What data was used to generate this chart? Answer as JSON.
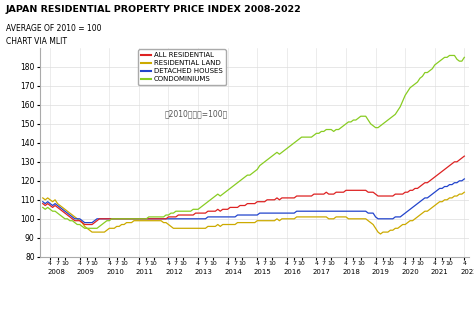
{
  "title": "JAPAN RESIDENTIAL PROPERTY PRICE INDEX 2008-2022",
  "subtitle1": "AVERAGE OF 2010 = 100",
  "subtitle2": "CHART VIA MLIT",
  "annotation": "（2010年平均=100）",
  "ylim": [
    80,
    190
  ],
  "yticks": [
    80,
    90,
    100,
    110,
    120,
    130,
    140,
    150,
    160,
    170,
    180
  ],
  "years": [
    2008,
    2009,
    2010,
    2011,
    2012,
    2013,
    2014,
    2015,
    2016,
    2017,
    2018,
    2019,
    2020,
    2021,
    2022
  ],
  "colors": {
    "all_residential": "#dd2222",
    "residential_land": "#ccaa00",
    "detached_houses": "#2244cc",
    "condominiums": "#88cc22"
  },
  "legend_labels": [
    "ALL RESIDENTIAL",
    "RESIDENTIAL LAND",
    "DETACHED HOUSES",
    "CONDOMINIUMS"
  ],
  "all_residential": [
    108,
    107,
    108,
    107,
    106,
    107,
    106,
    105,
    104,
    103,
    102,
    101,
    100,
    99,
    99,
    99,
    98,
    97,
    97,
    97,
    97,
    98,
    99,
    100,
    100,
    100,
    100,
    100,
    100,
    100,
    100,
    100,
    100,
    100,
    100,
    100,
    100,
    100,
    100,
    100,
    100,
    100,
    100,
    100,
    100,
    100,
    100,
    100,
    100,
    100,
    100,
    101,
    101,
    101,
    101,
    102,
    102,
    102,
    102,
    102,
    102,
    102,
    103,
    103,
    103,
    103,
    103,
    104,
    104,
    104,
    104,
    105,
    104,
    105,
    105,
    105,
    106,
    106,
    106,
    106,
    107,
    107,
    107,
    108,
    108,
    108,
    108,
    109,
    109,
    109,
    109,
    110,
    110,
    110,
    110,
    111,
    110,
    111,
    111,
    111,
    111,
    111,
    111,
    112,
    112,
    112,
    112,
    112,
    112,
    112,
    113,
    113,
    113,
    113,
    113,
    114,
    113,
    113,
    113,
    114,
    114,
    114,
    114,
    115,
    115,
    115,
    115,
    115,
    115,
    115,
    115,
    115,
    114,
    114,
    114,
    113,
    112,
    112,
    112,
    112,
    112,
    112,
    112,
    113,
    113,
    113,
    113,
    114,
    114,
    115,
    115,
    116,
    116,
    117,
    118,
    119,
    119,
    120,
    121,
    122,
    123,
    124,
    125,
    126,
    127,
    128,
    129,
    130,
    130,
    131,
    132,
    133
  ],
  "residential_land": [
    111,
    110,
    111,
    110,
    109,
    110,
    108,
    107,
    106,
    105,
    104,
    103,
    102,
    101,
    100,
    99,
    98,
    96,
    95,
    94,
    93,
    93,
    93,
    93,
    93,
    93,
    94,
    95,
    95,
    95,
    96,
    96,
    97,
    97,
    98,
    98,
    98,
    99,
    99,
    99,
    99,
    99,
    99,
    99,
    99,
    99,
    99,
    99,
    99,
    98,
    98,
    97,
    96,
    95,
    95,
    95,
    95,
    95,
    95,
    95,
    95,
    95,
    95,
    95,
    95,
    95,
    95,
    96,
    96,
    96,
    96,
    97,
    96,
    97,
    97,
    97,
    97,
    97,
    97,
    98,
    98,
    98,
    98,
    98,
    98,
    98,
    98,
    99,
    99,
    99,
    99,
    99,
    99,
    99,
    99,
    100,
    99,
    100,
    100,
    100,
    100,
    100,
    100,
    101,
    101,
    101,
    101,
    101,
    101,
    101,
    101,
    101,
    101,
    101,
    101,
    101,
    100,
    100,
    100,
    101,
    101,
    101,
    101,
    101,
    100,
    100,
    100,
    100,
    100,
    100,
    100,
    100,
    99,
    98,
    97,
    95,
    93,
    92,
    93,
    93,
    93,
    94,
    94,
    95,
    95,
    96,
    97,
    97,
    98,
    99,
    99,
    100,
    101,
    102,
    103,
    104,
    104,
    105,
    106,
    107,
    108,
    109,
    109,
    110,
    110,
    111,
    111,
    112,
    112,
    113,
    113,
    114
  ],
  "detached_houses": [
    109,
    108,
    109,
    108,
    107,
    108,
    107,
    106,
    105,
    104,
    103,
    102,
    101,
    100,
    100,
    100,
    99,
    98,
    98,
    98,
    98,
    99,
    100,
    100,
    100,
    100,
    100,
    100,
    100,
    100,
    100,
    100,
    100,
    100,
    100,
    100,
    100,
    100,
    100,
    100,
    100,
    100,
    100,
    100,
    100,
    100,
    100,
    100,
    100,
    100,
    100,
    100,
    100,
    100,
    100,
    100,
    100,
    100,
    100,
    100,
    100,
    100,
    100,
    100,
    100,
    100,
    100,
    101,
    101,
    101,
    101,
    101,
    101,
    101,
    101,
    101,
    101,
    101,
    101,
    102,
    102,
    102,
    102,
    102,
    102,
    102,
    102,
    102,
    103,
    103,
    103,
    103,
    103,
    103,
    103,
    103,
    103,
    103,
    103,
    103,
    103,
    103,
    103,
    104,
    104,
    104,
    104,
    104,
    104,
    104,
    104,
    104,
    104,
    104,
    104,
    104,
    104,
    104,
    104,
    104,
    104,
    104,
    104,
    104,
    104,
    104,
    104,
    104,
    104,
    104,
    104,
    104,
    103,
    103,
    103,
    101,
    100,
    100,
    100,
    100,
    100,
    100,
    100,
    101,
    101,
    101,
    102,
    103,
    104,
    105,
    106,
    107,
    108,
    109,
    110,
    111,
    111,
    112,
    113,
    114,
    115,
    116,
    116,
    117,
    117,
    118,
    118,
    119,
    119,
    120,
    120,
    121
  ],
  "condominiums": [
    106,
    105,
    106,
    105,
    104,
    104,
    103,
    102,
    101,
    100,
    100,
    99,
    99,
    98,
    97,
    97,
    96,
    95,
    95,
    95,
    95,
    95,
    95,
    96,
    97,
    98,
    99,
    99,
    100,
    100,
    100,
    100,
    100,
    100,
    100,
    100,
    100,
    100,
    100,
    100,
    100,
    100,
    100,
    101,
    101,
    101,
    101,
    101,
    101,
    101,
    102,
    102,
    103,
    103,
    104,
    104,
    104,
    104,
    104,
    104,
    104,
    105,
    105,
    105,
    106,
    107,
    108,
    109,
    110,
    111,
    112,
    113,
    112,
    113,
    114,
    115,
    116,
    117,
    118,
    119,
    120,
    121,
    122,
    123,
    123,
    124,
    125,
    126,
    128,
    129,
    130,
    131,
    132,
    133,
    134,
    135,
    134,
    135,
    136,
    137,
    138,
    139,
    140,
    141,
    142,
    143,
    143,
    143,
    143,
    143,
    144,
    145,
    145,
    146,
    146,
    147,
    147,
    147,
    146,
    147,
    147,
    148,
    149,
    150,
    151,
    151,
    152,
    152,
    153,
    154,
    154,
    154,
    152,
    150,
    149,
    148,
    148,
    149,
    150,
    151,
    152,
    153,
    154,
    155,
    157,
    159,
    162,
    165,
    167,
    169,
    170,
    171,
    172,
    174,
    175,
    177,
    177,
    178,
    179,
    181,
    182,
    183,
    184,
    185,
    185,
    186,
    186,
    186,
    184,
    183,
    183,
    185
  ]
}
